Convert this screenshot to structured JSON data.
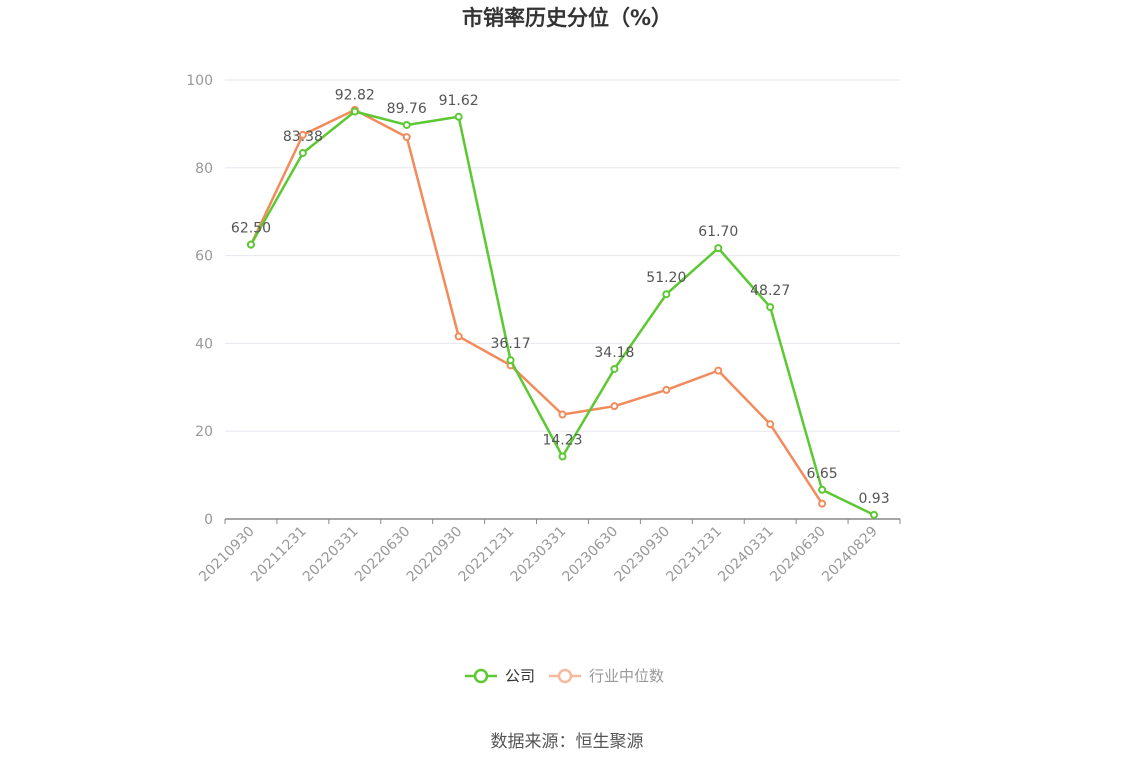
{
  "chart_data": {
    "type": "line",
    "title": "市销率历史分位（%）",
    "categories": [
      "20210930",
      "20211231",
      "20220331",
      "20220630",
      "20220930",
      "20221231",
      "20230331",
      "20230630",
      "20230930",
      "20231231",
      "20240331",
      "20240630",
      "20240829"
    ],
    "ylim": [
      0,
      100
    ],
    "yticks": [
      0,
      20,
      40,
      60,
      80,
      100
    ],
    "grid": true,
    "legend_position": "bottom",
    "series": [
      {
        "name": "公司",
        "color": "#5cc832",
        "values": [
          62.5,
          83.38,
          92.82,
          89.76,
          91.62,
          36.17,
          14.23,
          34.18,
          51.2,
          61.7,
          48.27,
          6.65,
          0.93
        ],
        "labels": [
          "62.50",
          "83.38",
          "92.82",
          "89.76",
          "91.62",
          "36.17",
          "14.23",
          "34.18",
          "51.20",
          "61.70",
          "48.27",
          "6.65",
          "0.93"
        ]
      },
      {
        "name": "行业中位数",
        "color": "#f28b5b",
        "legend_color": "#f6b9a0",
        "values": [
          62.5,
          87.5,
          93.2,
          87.0,
          41.6,
          35.0,
          23.8,
          25.7,
          29.4,
          33.8,
          21.6,
          3.5,
          null
        ]
      }
    ]
  },
  "source": "数据来源：恒生聚源"
}
